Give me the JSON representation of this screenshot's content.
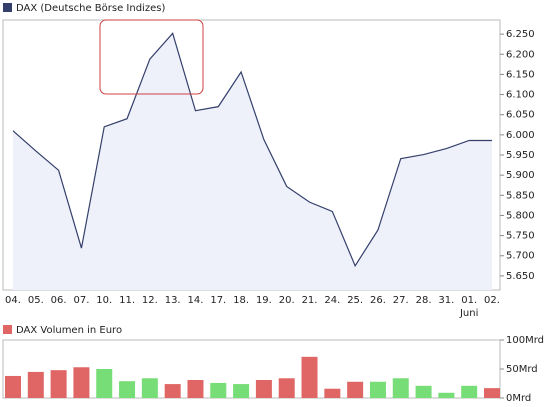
{
  "chart_data": [
    {
      "type": "line",
      "legend": "DAX (Deutsche Börse Indizes)",
      "color": "#34406b",
      "fill": "#eef0fa",
      "categories": [
        "04.",
        "05.",
        "06.",
        "07.",
        "10.",
        "11.",
        "12.",
        "13.",
        "14.",
        "17.",
        "18.",
        "19.",
        "20.",
        "21.",
        "24.",
        "25.",
        "26.",
        "27.",
        "28.",
        "31.",
        "01.",
        "02."
      ],
      "x_sublabels": [
        null,
        null,
        null,
        null,
        null,
        null,
        null,
        null,
        null,
        null,
        null,
        null,
        null,
        null,
        null,
        null,
        null,
        null,
        null,
        null,
        "Juni",
        null
      ],
      "values": [
        6010,
        5960,
        5912,
        5719,
        6020,
        6040,
        6188,
        6252,
        6060,
        6070,
        6156,
        5988,
        5872,
        5833,
        5810,
        5675,
        5764,
        5941,
        5951,
        5966,
        5986,
        5986
      ],
      "ylim": [
        5615,
        6285
      ],
      "yticks": [
        {
          "value": 5650,
          "label": "5.650"
        },
        {
          "value": 5700,
          "label": "5.700"
        },
        {
          "value": 5750,
          "label": "5.750"
        },
        {
          "value": 5800,
          "label": "5.800"
        },
        {
          "value": 5850,
          "label": "5.850"
        },
        {
          "value": 5900,
          "label": "5.900"
        },
        {
          "value": 5950,
          "label": "5.950"
        },
        {
          "value": 6000,
          "label": "6.000"
        },
        {
          "value": 6050,
          "label": "6.050"
        },
        {
          "value": 6100,
          "label": "6.100"
        },
        {
          "value": 6150,
          "label": "6.150"
        },
        {
          "value": 6200,
          "label": "6.200"
        },
        {
          "value": 6250,
          "label": "6.250"
        }
      ]
    },
    {
      "type": "bar",
      "legend": "DAX Volumen in Euro",
      "color": "#e06666",
      "values": [
        38,
        45,
        48,
        53,
        50,
        29,
        34,
        24,
        31,
        26,
        24,
        31,
        34,
        71,
        16,
        28,
        28,
        34,
        21,
        9,
        21,
        17
      ],
      "colors": [
        "#e06666",
        "#e06666",
        "#e06666",
        "#e06666",
        "#77dd77",
        "#77dd77",
        "#77dd77",
        "#e06666",
        "#e06666",
        "#77dd77",
        "#77dd77",
        "#e06666",
        "#e06666",
        "#e06666",
        "#e06666",
        "#e06666",
        "#77dd77",
        "#77dd77",
        "#77dd77",
        "#77dd77",
        "#77dd77",
        "#e06666"
      ],
      "ylim": [
        0,
        100
      ],
      "yticks": [
        {
          "value": 0,
          "label": "0Mrd"
        },
        {
          "value": 50,
          "label": "50Mrd"
        },
        {
          "value": 100,
          "label": "100Mrd"
        }
      ]
    }
  ]
}
